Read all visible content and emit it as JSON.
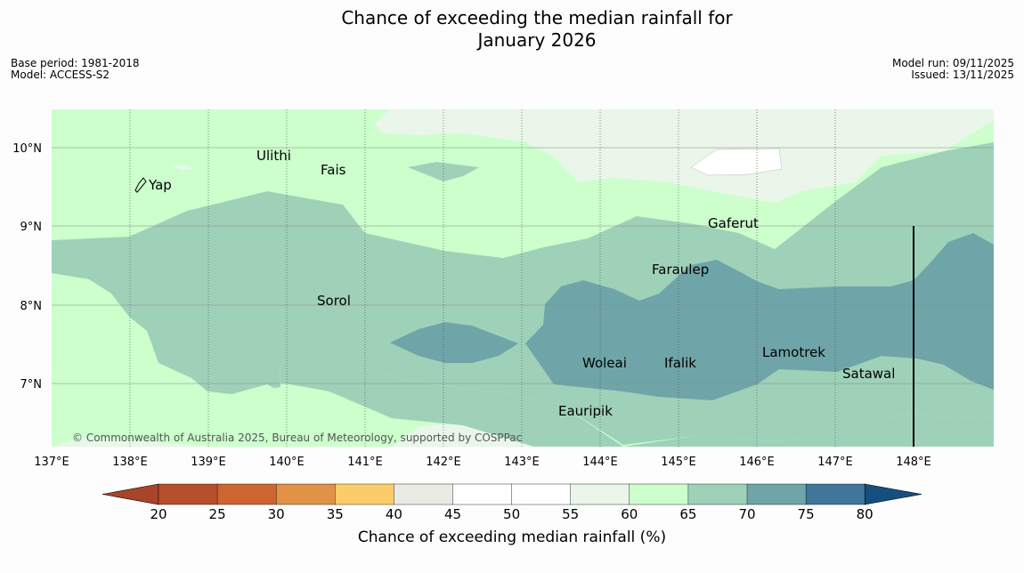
{
  "header": {
    "title_line1": "Chance of exceeding the median rainfall for",
    "title_line2": "January 2026",
    "base_period": "Base period: 1981-2018",
    "model": "Model: ACCESS-S2",
    "model_run": "Model run: 09/11/2025",
    "issued": "Issued: 13/11/2025"
  },
  "map": {
    "lat_labels": [
      "10°N",
      "9°N",
      "8°N",
      "7°N"
    ],
    "lon_labels": [
      "137°E",
      "138°E",
      "139°E",
      "140°E",
      "141°E",
      "142°E",
      "143°E",
      "144°E",
      "145°E",
      "146°E",
      "147°E",
      "148°E"
    ],
    "places": [
      "Ulithi",
      "Fais",
      "Yap",
      "Gaferut",
      "Faraulep",
      "Sorol",
      "Lamotrek",
      "Woleai",
      "Ifalik",
      "Satawal",
      "Eauripik"
    ],
    "copyright": "© Commonwealth of Australia 2025, Bureau of Meteorology, supported by COSPPac",
    "colors": {
      "c40_45": "#ebebe5",
      "c45_55": "#ffffff",
      "c55_60": "#e9f6e9",
      "c60_65": "#ccffcc",
      "c65_70": "#9fd1b9",
      "c70_75": "#6fa5a8",
      "c75_80": "#3f7699"
    }
  },
  "colorbar": {
    "title": "Chance of exceeding median rainfall (%)",
    "ticks": [
      "20",
      "25",
      "30",
      "35",
      "40",
      "45",
      "50",
      "55",
      "60",
      "65",
      "70",
      "75",
      "80"
    ],
    "colors": [
      "#a94428",
      "#b54f2c",
      "#cd6432",
      "#e19246",
      "#fdcc6a",
      "#ebebe5",
      "#ffffff",
      "#ffffff",
      "#e9f6e9",
      "#ccffcc",
      "#9fd1b9",
      "#6fa5a8",
      "#3f7699",
      "#154f80"
    ]
  }
}
